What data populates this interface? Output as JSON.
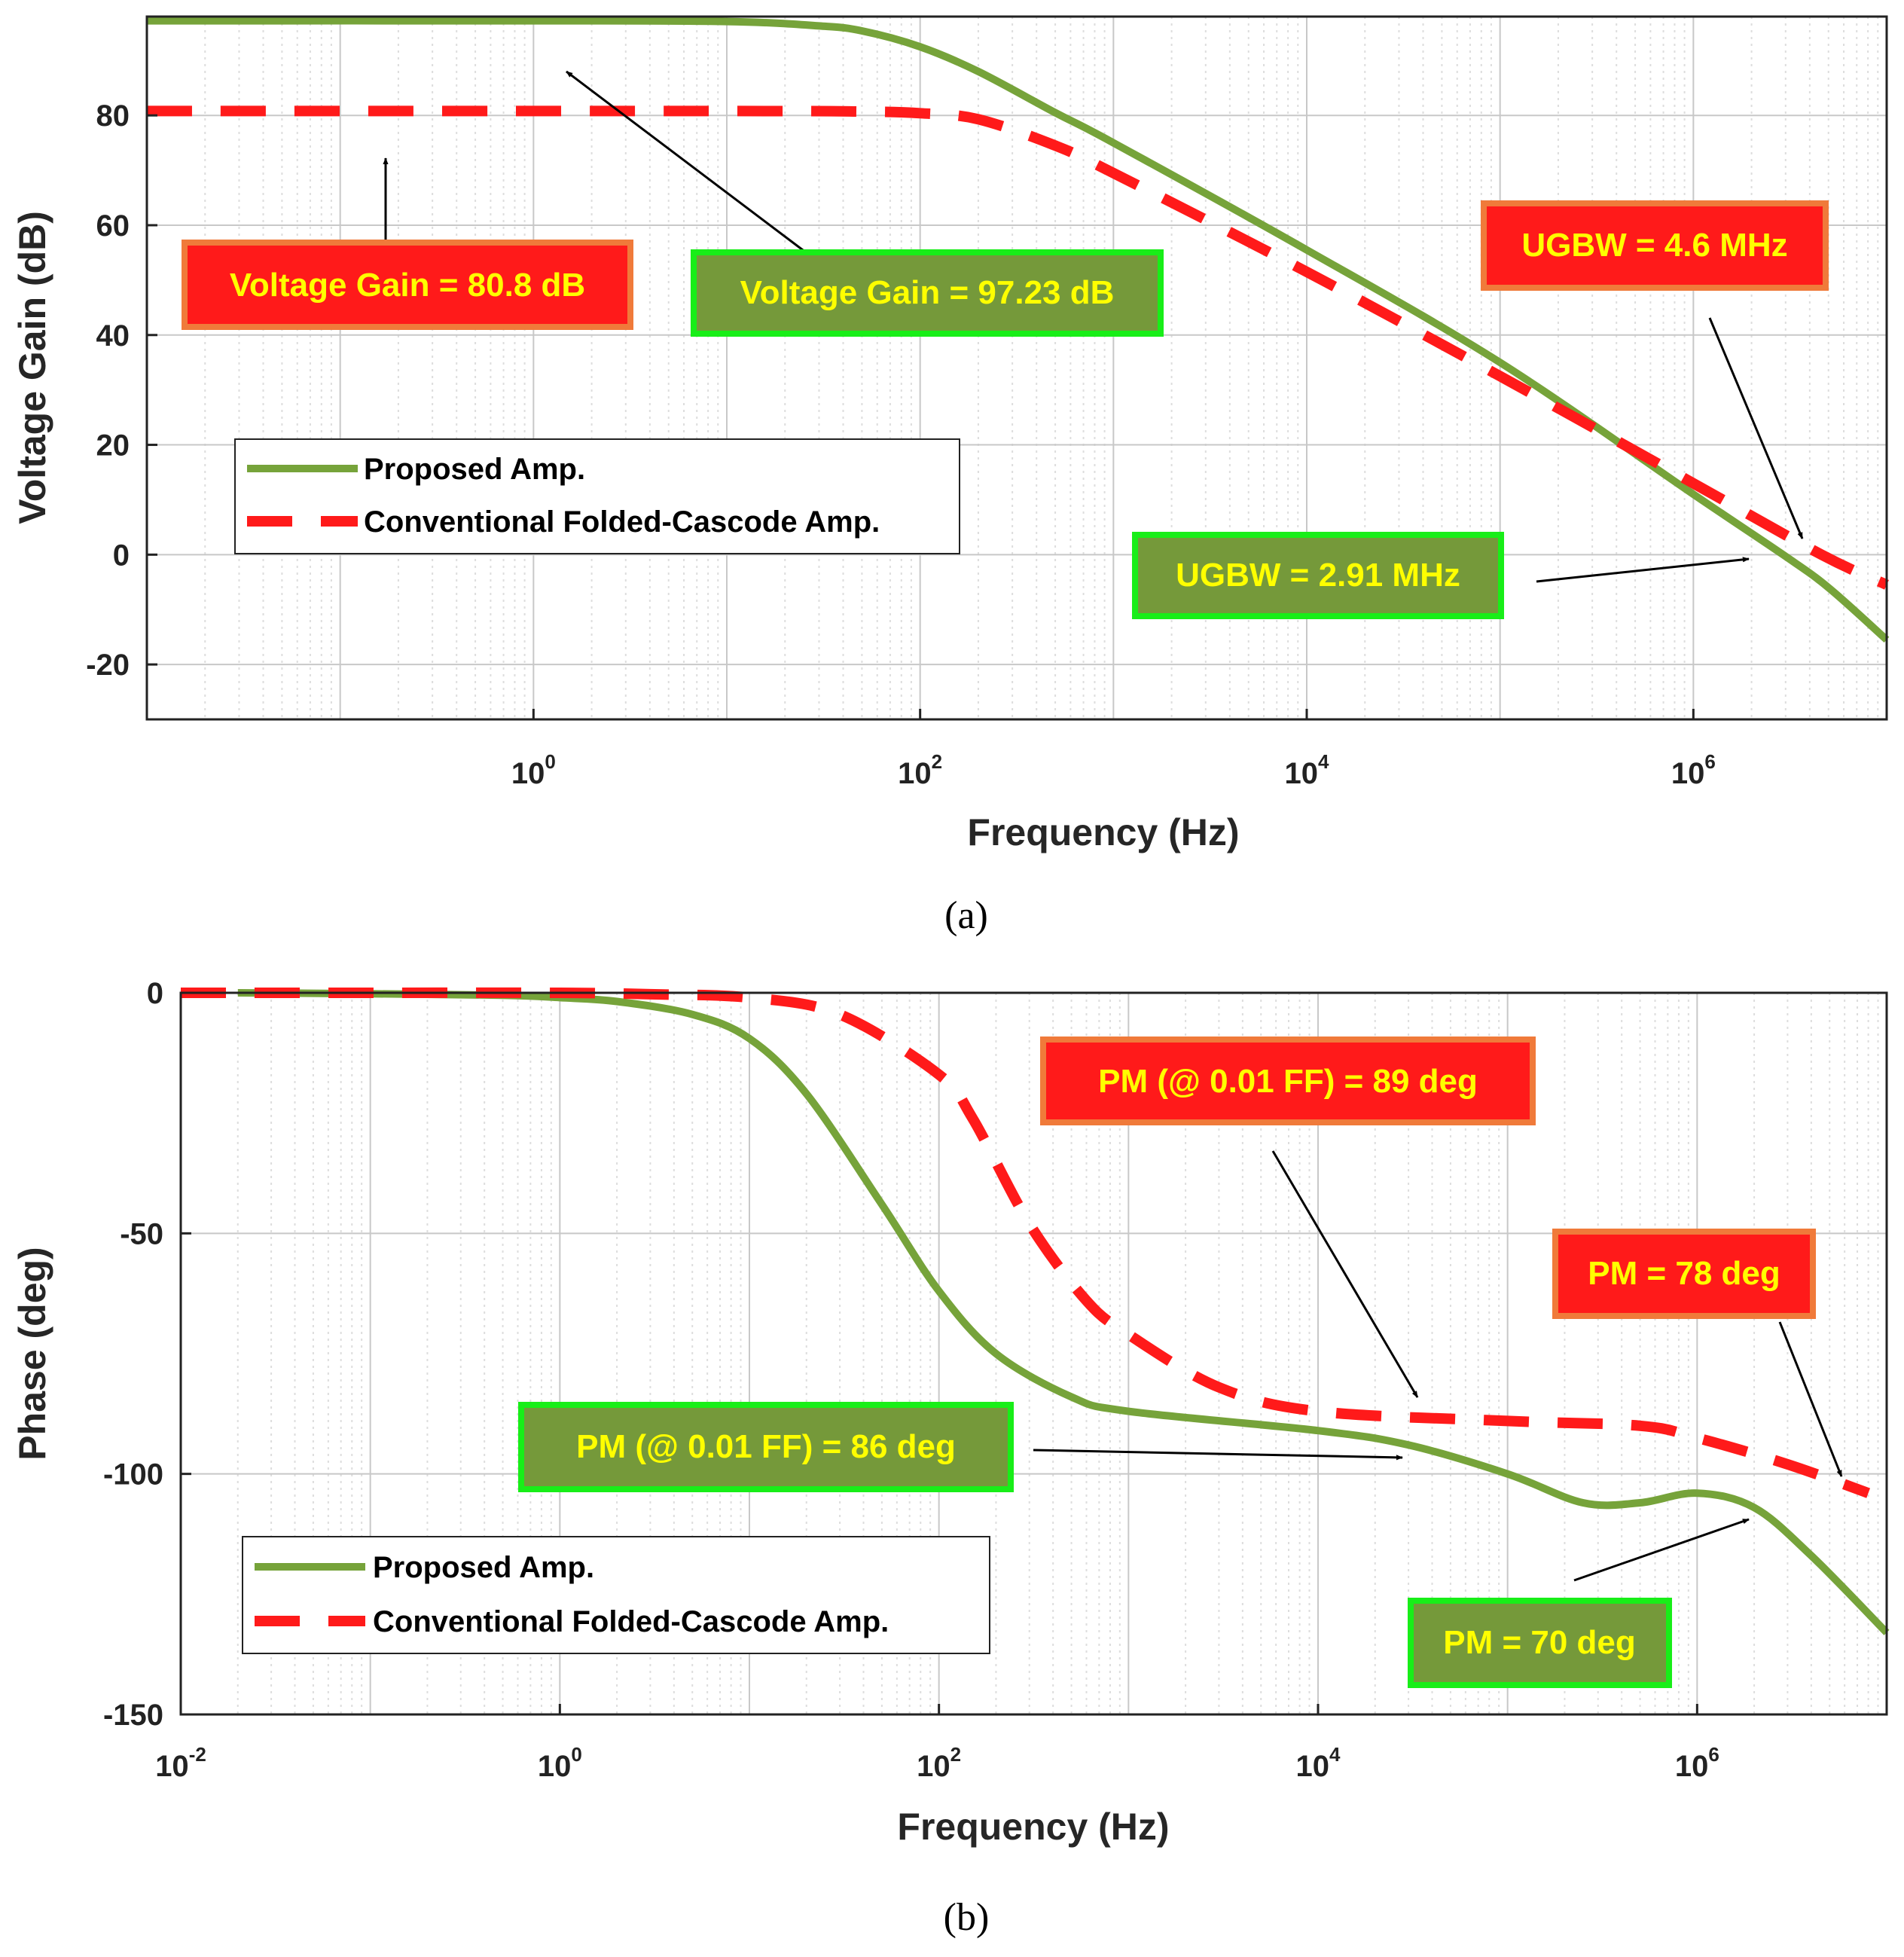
{
  "colors": {
    "proposed": "#76a33a",
    "conventional": "#ff1a1a",
    "box_green_fill": "#75993a",
    "box_green_border": "#18ee18",
    "box_red_fill": "#ff1a1a",
    "box_red_border": "#f07a3a",
    "annotation_text": "#ffff00",
    "grid_major": "#c8c8c8",
    "grid_minor": "#dddddd"
  },
  "chart_data": [
    {
      "id": "a",
      "type": "line",
      "caption": "(a)",
      "xlabel": "Frequency (Hz)",
      "ylabel": "Voltage Gain (dB)",
      "xscale": "log",
      "xlim": [
        0.01,
        10000000
      ],
      "ylim": [
        -30,
        98
      ],
      "xticks": [
        {
          "value": 1,
          "base": "10",
          "exp": "0"
        },
        {
          "value": 100,
          "base": "10",
          "exp": "2"
        },
        {
          "value": 10000,
          "base": "10",
          "exp": "4"
        },
        {
          "value": 1000000,
          "base": "10",
          "exp": "6"
        }
      ],
      "yticks": [
        {
          "value": 80,
          "label": "80"
        },
        {
          "value": 60,
          "label": "60"
        },
        {
          "value": 40,
          "label": "40"
        },
        {
          "value": 20,
          "label": "20"
        },
        {
          "value": 0,
          "label": "0"
        },
        {
          "value": -20,
          "label": "-20"
        }
      ],
      "grid": true,
      "legend": {
        "position": "left-center",
        "entries": [
          {
            "label": "Proposed Amp.",
            "series": "proposed"
          },
          {
            "label": "Conventional Folded-Cascode Amp.",
            "series": "conventional"
          }
        ]
      },
      "series": [
        {
          "name": "Proposed Amp.",
          "key": "proposed",
          "style": "solid",
          "x": [
            0.01,
            1,
            10,
            30,
            50,
            100,
            200,
            500,
            1000,
            10000,
            100000,
            1000000,
            2910000,
            5000000,
            10000000
          ],
          "y": [
            97.23,
            97.23,
            97.1,
            96.3,
            95.4,
            92.5,
            88,
            80.5,
            75,
            55.5,
            35,
            11,
            0,
            -6,
            -15.5
          ]
        },
        {
          "name": "Conventional Folded-Cascode Amp.",
          "key": "conventional",
          "style": "dashed",
          "x": [
            0.01,
            10,
            50,
            100,
            200,
            500,
            1000,
            10000,
            100000,
            1000000,
            4600000,
            10000000
          ],
          "y": [
            80.8,
            80.8,
            80.7,
            80.4,
            79.3,
            74.5,
            69.5,
            51.5,
            32.5,
            13,
            0,
            -5.5
          ]
        }
      ],
      "annotations": [
        {
          "text": "Voltage Gain = 80.8 dB",
          "box": "red",
          "arrow_to": {
            "x": 0.12,
            "y": 74
          }
        },
        {
          "text": "Voltage Gain = 97.23 dB",
          "box": "green",
          "arrow_to": {
            "x": 1.5,
            "y": 89
          }
        },
        {
          "text": "UGBW = 4.6 MHz",
          "box": "red",
          "arrow_to": {
            "x": 4600000,
            "y": 3
          }
        },
        {
          "text": "UGBW = 2.91 MHz",
          "box": "green",
          "arrow_to": {
            "x": 2800000,
            "y": -1
          }
        }
      ]
    },
    {
      "id": "b",
      "type": "line",
      "caption": "(b)",
      "xlabel": "Frequency (Hz)",
      "ylabel": "Phase (deg)",
      "xscale": "log",
      "xlim": [
        0.01,
        10000000
      ],
      "ylim": [
        -150,
        0
      ],
      "xticks": [
        {
          "value": 0.01,
          "base": "10",
          "exp": "-2"
        },
        {
          "value": 1,
          "base": "10",
          "exp": "0"
        },
        {
          "value": 100,
          "base": "10",
          "exp": "2"
        },
        {
          "value": 10000,
          "base": "10",
          "exp": "4"
        },
        {
          "value": 1000000,
          "base": "10",
          "exp": "6"
        }
      ],
      "yticks": [
        {
          "value": 0,
          "label": "0"
        },
        {
          "value": -50,
          "label": "-50"
        },
        {
          "value": -100,
          "label": "-100"
        },
        {
          "value": -150,
          "label": "-150"
        }
      ],
      "grid": true,
      "legend": {
        "position": "bottom-left",
        "entries": [
          {
            "label": "Proposed Amp.",
            "series": "proposed"
          },
          {
            "label": "Conventional Folded-Cascode Amp.",
            "series": "conventional"
          }
        ]
      },
      "series": [
        {
          "name": "Proposed Amp.",
          "key": "proposed",
          "style": "solid",
          "x": [
            0.02,
            0.1,
            0.5,
            1,
            2,
            5,
            10,
            20,
            50,
            100,
            200,
            500,
            1000,
            10000,
            30000,
            100000,
            250000,
            500000,
            1000000,
            2000000,
            4000000,
            10000000
          ],
          "y": [
            0,
            -0.2,
            -0.5,
            -1,
            -1.8,
            -4.5,
            -9.5,
            -21,
            -44,
            -62,
            -75,
            -84,
            -87,
            -91,
            -94,
            -100,
            -106,
            -106,
            -104,
            -107,
            -117,
            -133
          ]
        },
        {
          "name": "Conventional Folded-Cascode Amp.",
          "key": "conventional",
          "style": "dashed",
          "x": [
            0.01,
            0.1,
            1,
            3,
            10,
            30,
            100,
            150,
            300,
            600,
            1000,
            3000,
            10000,
            100000,
            500000,
            1000000,
            3000000,
            8000000
          ],
          "y": [
            0,
            0,
            0,
            -0.3,
            -1,
            -4.5,
            -17,
            -26,
            -48,
            -64,
            -71,
            -82,
            -87,
            -89,
            -90,
            -92.5,
            -98,
            -104
          ]
        }
      ],
      "annotations": [
        {
          "text": "PM (@ 0.01 FF) = 89 deg",
          "box": "red",
          "arrow_to": {
            "x": 35000,
            "y": -89
          }
        },
        {
          "text": "PM = 78 deg",
          "box": "red",
          "arrow_to": {
            "x": 6000000,
            "y": -101
          }
        },
        {
          "text": "PM (@ 0.01 FF) = 86 deg",
          "box": "green",
          "arrow_to": {
            "x": 25000,
            "y": -97
          }
        },
        {
          "text": "PM = 70 deg",
          "box": "green",
          "arrow_to": {
            "x": 2200000,
            "y": -108
          }
        }
      ]
    }
  ]
}
